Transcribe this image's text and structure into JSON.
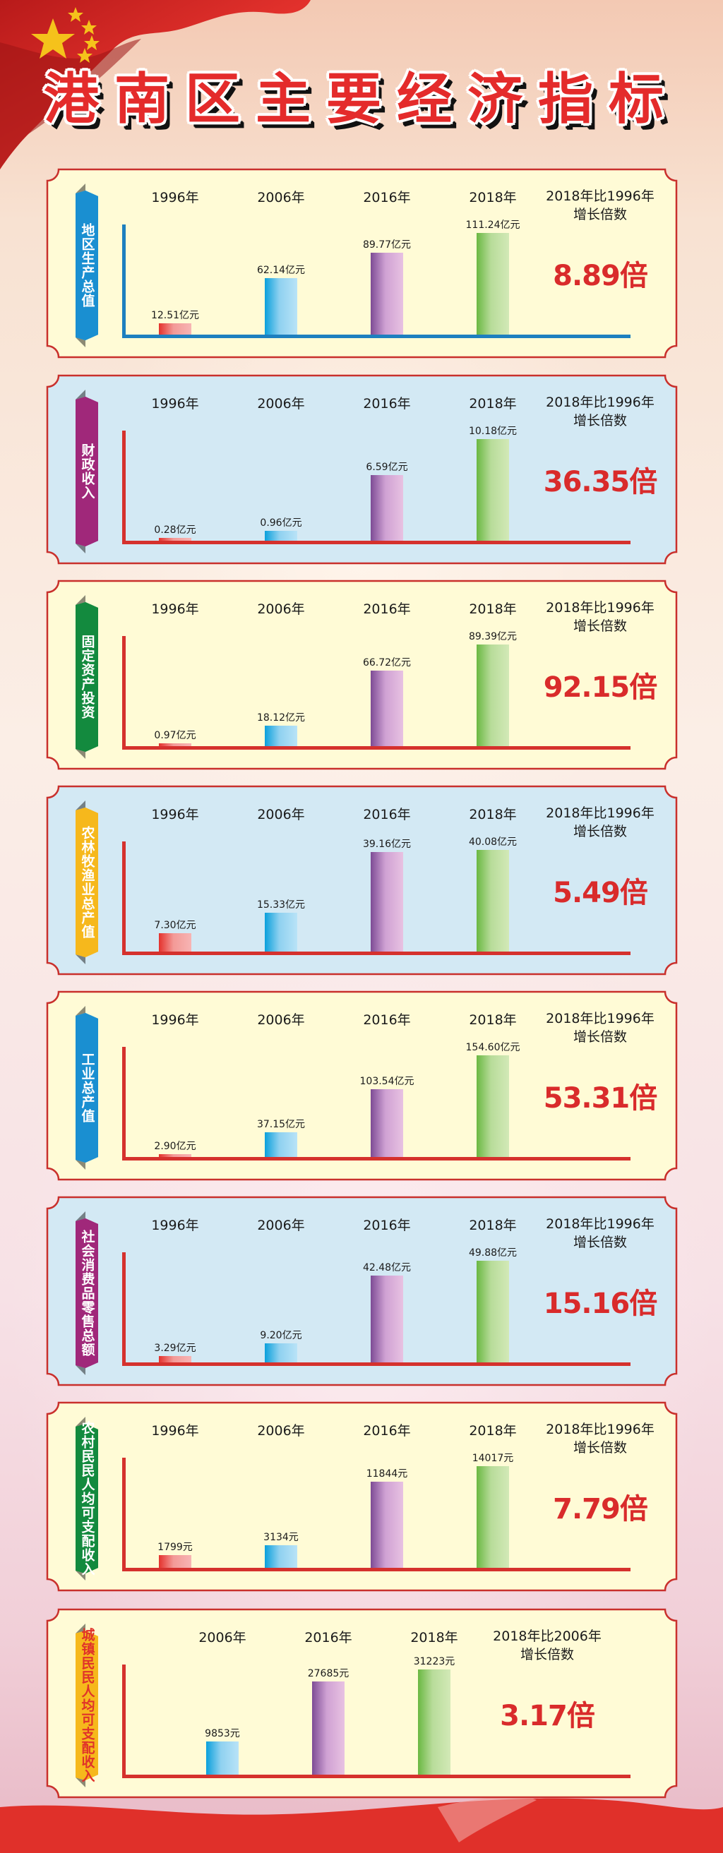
{
  "title": "港南区主要经济指标",
  "colors": {
    "title_red": "#e42b2b",
    "ratio_red": "#d92b2b",
    "frame_red": "#c9302c",
    "panel_yellow": "#fffbd6",
    "panel_blue": "#d3e9f4",
    "bar_1996": "#e4312c",
    "bar_2006": "#0aa0dc",
    "bar_2016": "#7d4b95",
    "bar_2018": "#6ab842"
  },
  "panels": [
    {
      "label": "地区生产总值",
      "ribbon_color": "#1a8fd1",
      "ribbon_text_color": "#ffffff",
      "axis_color": "#1d7fbf",
      "bg": "#fffbd6",
      "years": [
        "1996年",
        "2006年",
        "2016年",
        "2018年"
      ],
      "values": [
        "12.51亿元",
        "62.14亿元",
        "89.77亿元",
        "111.24亿元"
      ],
      "ratio_head_1": "2018年比1996年",
      "ratio_head_2": "增长倍数",
      "ratio": "8.89倍"
    },
    {
      "label": "财政收入",
      "ribbon_color": "#a0287a",
      "ribbon_text_color": "#ffffff",
      "axis_color": "#d5312d",
      "bg": "#d3e9f4",
      "years": [
        "1996年",
        "2006年",
        "2016年",
        "2018年"
      ],
      "values": [
        "0.28亿元",
        "0.96亿元",
        "6.59亿元",
        "10.18亿元"
      ],
      "ratio_head_1": "2018年比1996年",
      "ratio_head_2": "增长倍数",
      "ratio": "36.35倍"
    },
    {
      "label": "固定资产投资",
      "ribbon_color": "#138a3e",
      "ribbon_text_color": "#ffffff",
      "axis_color": "#d5312d",
      "bg": "#fffbd6",
      "years": [
        "1996年",
        "2006年",
        "2016年",
        "2018年"
      ],
      "values": [
        "0.97亿元",
        "18.12亿元",
        "66.72亿元",
        "89.39亿元"
      ],
      "ratio_head_1": "2018年比1996年",
      "ratio_head_2": "增长倍数",
      "ratio": "92.15倍"
    },
    {
      "label": "农林牧渔业总产值",
      "ribbon_color": "#f6b81c",
      "ribbon_text_color": "#ffffff",
      "axis_color": "#d5312d",
      "bg": "#d3e9f4",
      "years": [
        "1996年",
        "2006年",
        "2016年",
        "2018年"
      ],
      "values": [
        "7.30亿元",
        "15.33亿元",
        "39.16亿元",
        "40.08亿元"
      ],
      "ratio_head_1": "2018年比1996年",
      "ratio_head_2": "增长倍数",
      "ratio": "5.49倍"
    },
    {
      "label": "工业总产值",
      "ribbon_color": "#1a8fd1",
      "ribbon_text_color": "#ffffff",
      "axis_color": "#d5312d",
      "bg": "#fffbd6",
      "years": [
        "1996年",
        "2006年",
        "2016年",
        "2018年"
      ],
      "values": [
        "2.90亿元",
        "37.15亿元",
        "103.54亿元",
        "154.60亿元"
      ],
      "ratio_head_1": "2018年比1996年",
      "ratio_head_2": "增长倍数",
      "ratio": "53.31倍"
    },
    {
      "label": "社会消费品零售总额",
      "ribbon_color": "#a0287a",
      "ribbon_text_color": "#ffffff",
      "axis_color": "#d5312d",
      "bg": "#d3e9f4",
      "years": [
        "1996年",
        "2006年",
        "2016年",
        "2018年"
      ],
      "values": [
        "3.29亿元",
        "9.20亿元",
        "42.48亿元",
        "49.88亿元"
      ],
      "ratio_head_1": "2018年比1996年",
      "ratio_head_2": "增长倍数",
      "ratio": "15.16倍"
    },
    {
      "label": "农村民民人均可支配收入",
      "ribbon_color": "#138a3e",
      "ribbon_text_color": "#ffffff",
      "axis_color": "#d5312d",
      "bg": "#fffbd6",
      "years": [
        "1996年",
        "2006年",
        "2016年",
        "2018年"
      ],
      "values": [
        "1799元",
        "3134元",
        "11844元",
        "14017元"
      ],
      "ratio_head_1": "2018年比1996年",
      "ratio_head_2": "增长倍数",
      "ratio": "7.79倍"
    },
    {
      "label": "城镇民民人均可支配收入",
      "ribbon_color": "#f6b81c",
      "ribbon_text_color": "#e0322a",
      "axis_color": "#d5312d",
      "bg": "#fffbd6",
      "years": [
        "2006年",
        "2016年",
        "2018年"
      ],
      "values": [
        "9853元",
        "27685元",
        "31223元"
      ],
      "ratio_head_1": "2018年比2006年",
      "ratio_head_2": "增长倍数",
      "ratio": "3.17倍"
    }
  ],
  "chart_data": [
    {
      "type": "bar",
      "title": "地区生产总值",
      "categories": [
        "1996年",
        "2006年",
        "2016年",
        "2018年"
      ],
      "values": [
        12.51,
        62.14,
        89.77,
        111.24
      ],
      "unit": "亿元",
      "annotation": "2018年比1996年增长倍数 8.89倍",
      "grid": false,
      "legend": "none"
    },
    {
      "type": "bar",
      "title": "财政收入",
      "categories": [
        "1996年",
        "2006年",
        "2016年",
        "2018年"
      ],
      "values": [
        0.28,
        0.96,
        6.59,
        10.18
      ],
      "unit": "亿元",
      "annotation": "2018年比1996年增长倍数 36.35倍",
      "grid": false,
      "legend": "none"
    },
    {
      "type": "bar",
      "title": "固定资产投资",
      "categories": [
        "1996年",
        "2006年",
        "2016年",
        "2018年"
      ],
      "values": [
        0.97,
        18.12,
        66.72,
        89.39
      ],
      "unit": "亿元",
      "annotation": "2018年比1996年增长倍数 92.15倍",
      "grid": false,
      "legend": "none"
    },
    {
      "type": "bar",
      "title": "农林牧渔业总产值",
      "categories": [
        "1996年",
        "2006年",
        "2016年",
        "2018年"
      ],
      "values": [
        7.3,
        15.33,
        39.16,
        40.08
      ],
      "unit": "亿元",
      "annotation": "2018年比1996年增长倍数 5.49倍",
      "grid": false,
      "legend": "none"
    },
    {
      "type": "bar",
      "title": "工业总产值",
      "categories": [
        "1996年",
        "2006年",
        "2016年",
        "2018年"
      ],
      "values": [
        2.9,
        37.15,
        103.54,
        154.6
      ],
      "unit": "亿元",
      "annotation": "2018年比1996年增长倍数 53.31倍",
      "grid": false,
      "legend": "none"
    },
    {
      "type": "bar",
      "title": "社会消费品零售总额",
      "categories": [
        "1996年",
        "2006年",
        "2016年",
        "2018年"
      ],
      "values": [
        3.29,
        9.2,
        42.48,
        49.88
      ],
      "unit": "亿元",
      "annotation": "2018年比1996年增长倍数 15.16倍",
      "grid": false,
      "legend": "none"
    },
    {
      "type": "bar",
      "title": "农村民民人均可支配收入",
      "categories": [
        "1996年",
        "2006年",
        "2016年",
        "2018年"
      ],
      "values": [
        1799,
        3134,
        11844,
        14017
      ],
      "unit": "元",
      "annotation": "2018年比1996年增长倍数 7.79倍",
      "grid": false,
      "legend": "none"
    },
    {
      "type": "bar",
      "title": "城镇民民人均可支配收入",
      "categories": [
        "2006年",
        "2016年",
        "2018年"
      ],
      "values": [
        9853,
        27685,
        31223
      ],
      "unit": "元",
      "annotation": "2018年比2006年增长倍数 3.17倍",
      "grid": false,
      "legend": "none"
    }
  ]
}
